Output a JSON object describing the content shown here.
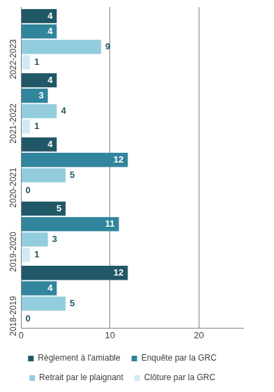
{
  "chart_data": {
    "type": "bar",
    "orientation": "horizontal",
    "categories": [
      "2022-2023",
      "2021-2022",
      "2020-2021",
      "2019-2020",
      "2018-2019"
    ],
    "series": [
      {
        "name": "Règlement à l'amiable",
        "color": "#215868",
        "values": [
          4,
          4,
          4,
          5,
          12
        ]
      },
      {
        "name": "Enquête par la GRC",
        "color": "#31859c",
        "values": [
          4,
          3,
          12,
          11,
          4
        ]
      },
      {
        "name": "Retrait par le plaignant",
        "color": "#93cddd",
        "values": [
          9,
          4,
          5,
          3,
          5
        ]
      },
      {
        "name": "Clôture par la GRC",
        "color": "#d2eaf1",
        "values": [
          1,
          1,
          0,
          1,
          0
        ]
      }
    ],
    "xlim": [
      0,
      25
    ],
    "xticks": [
      0,
      10,
      20
    ],
    "grid": true,
    "legend": "bottom",
    "data_labels": true
  }
}
